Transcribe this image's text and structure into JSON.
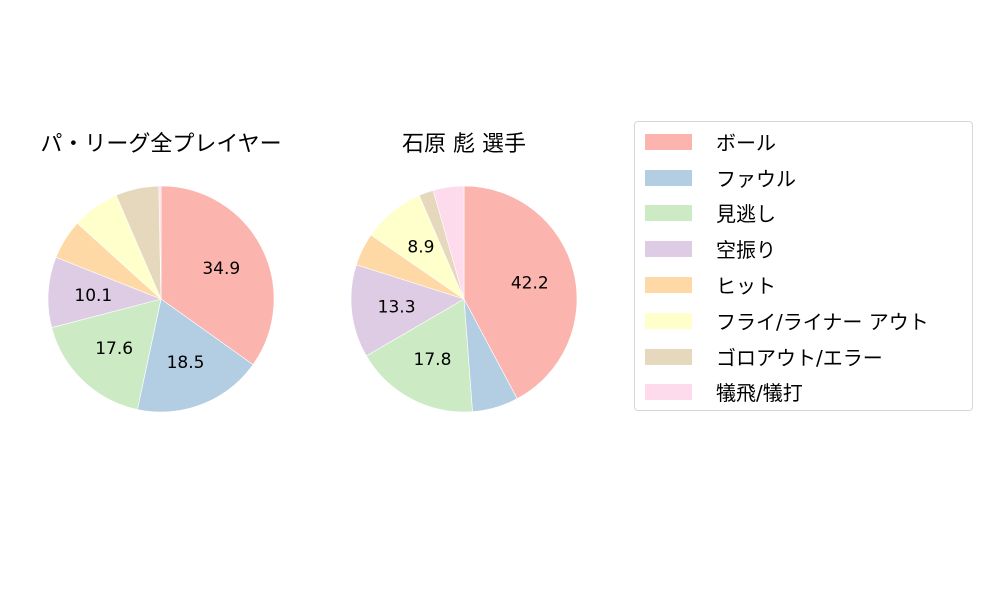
{
  "chart_data": [
    {
      "type": "pie",
      "title": "パ・リーグ全プレイヤー",
      "categories": [
        "ボール",
        "ファウル",
        "見逃し",
        "空振り",
        "ヒット",
        "フライ/ライナー アウト",
        "ゴロアウト/エラー",
        "犠飛/犠打"
      ],
      "values": [
        34.9,
        18.5,
        17.6,
        10.1,
        5.7,
        6.8,
        6.2,
        0.3
      ],
      "labels_shown": [
        "34.9",
        "18.5",
        "17.6",
        "10.1",
        "",
        "",
        "",
        ""
      ],
      "start_angle": 90,
      "direction": "clockwise"
    },
    {
      "type": "pie",
      "title": "石原 彪  選手",
      "categories": [
        "ボール",
        "ファウル",
        "見逃し",
        "空振り",
        "ヒット",
        "フライ/ライナー アウト",
        "ゴロアウト/エラー",
        "犠飛/犠打"
      ],
      "values": [
        42.2,
        6.6,
        17.8,
        13.3,
        4.7,
        8.9,
        2.1,
        4.4
      ],
      "labels_shown": [
        "42.2",
        "",
        "17.8",
        "13.3",
        "",
        "8.9",
        "",
        ""
      ],
      "start_angle": 90,
      "direction": "clockwise"
    }
  ],
  "colors": [
    "#fbb4ae",
    "#b3cde3",
    "#ccebc5",
    "#decbe4",
    "#fed9a6",
    "#ffffcc",
    "#e5d8bd",
    "#fddaec"
  ],
  "legend": {
    "items": [
      {
        "label": "ボール",
        "color": "#fbb4ae"
      },
      {
        "label": "ファウル",
        "color": "#b3cde3"
      },
      {
        "label": "見逃し",
        "color": "#ccebc5"
      },
      {
        "label": "空振り",
        "color": "#decbe4"
      },
      {
        "label": "ヒット",
        "color": "#fed9a6"
      },
      {
        "label": "フライ/ライナー アウト",
        "color": "#ffffcc"
      },
      {
        "label": "ゴロアウト/エラー",
        "color": "#e5d8bd"
      },
      {
        "label": "犠飛/犠打",
        "color": "#fddaec"
      }
    ]
  }
}
